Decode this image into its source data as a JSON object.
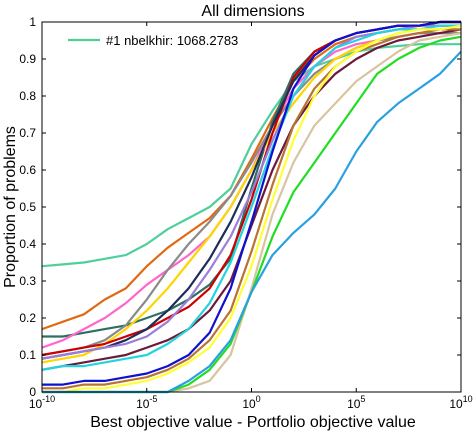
{
  "chart_data": {
    "type": "line",
    "title": "All dimensions",
    "xlabel": "Best objective value - Portfolio objective value",
    "ylabel": "Proportion of problems",
    "x_scale": "log10",
    "x_range": [
      "1e-10",
      "1e10"
    ],
    "ylim": [
      0,
      1
    ],
    "x_ticks": [
      {
        "base": "10",
        "exp": "-10"
      },
      {
        "base": "10",
        "exp": "-5"
      },
      {
        "base": "10",
        "exp": "0"
      },
      {
        "base": "10",
        "exp": "5"
      },
      {
        "base": "10",
        "exp": "10"
      }
    ],
    "y_ticks": [
      "0",
      "0.1",
      "0.2",
      "0.3",
      "0.4",
      "0.5",
      "0.6",
      "0.7",
      "0.8",
      "0.9",
      "1"
    ],
    "grid": false,
    "legend": {
      "position": "top-left",
      "entries": [
        "#1 nbelkhir: 1068.2783"
      ]
    },
    "series": [
      {
        "name": "#1 nbelkhir: 1068.2783",
        "color": "#4fcf9a",
        "x": [
          1e-10,
          1e-09,
          1e-08,
          1e-07,
          1e-06,
          1e-05,
          0.0001,
          0.001,
          0.01,
          0.1,
          1,
          10.0,
          100.0,
          1000.0,
          10000.0,
          100000.0,
          1000000.0,
          10000000.0,
          100000000.0,
          1000000000.0,
          10000000000.0
        ],
        "y": [
          0.34,
          0.345,
          0.35,
          0.36,
          0.37,
          0.4,
          0.44,
          0.47,
          0.5,
          0.55,
          0.67,
          0.76,
          0.84,
          0.88,
          0.9,
          0.92,
          0.93,
          0.935,
          0.94,
          0.94,
          0.94
        ]
      },
      {
        "color": "#e06a14",
        "x": [
          1e-10,
          1e-09,
          1e-08,
          1e-07,
          1e-06,
          1e-05,
          0.0001,
          0.001,
          0.01,
          0.1,
          1,
          10.0,
          100.0,
          1000.0,
          10000.0,
          100000.0,
          1000000.0,
          10000000.0,
          100000000.0,
          1000000000.0,
          10000000000.0
        ],
        "y": [
          0.17,
          0.19,
          0.21,
          0.25,
          0.28,
          0.34,
          0.39,
          0.43,
          0.47,
          0.53,
          0.63,
          0.74,
          0.84,
          0.9,
          0.94,
          0.96,
          0.97,
          0.98,
          0.99,
          0.99,
          0.99
        ]
      },
      {
        "color": "#2f6f62",
        "x": [
          1e-10,
          1e-09,
          1e-08,
          1e-07,
          1e-06,
          1e-05,
          0.0001,
          0.001,
          0.01,
          0.1,
          1,
          10.0,
          100.0,
          1000.0,
          10000.0,
          100000.0,
          1000000.0,
          10000000.0,
          100000000.0,
          1000000000.0,
          10000000000.0
        ],
        "y": [
          0.15,
          0.15,
          0.16,
          0.17,
          0.18,
          0.2,
          0.22,
          0.25,
          0.29,
          0.36,
          0.55,
          0.73,
          0.86,
          0.92,
          0.95,
          0.97,
          0.98,
          0.99,
          0.99,
          1,
          1
        ]
      },
      {
        "color": "#ff66cc",
        "x": [
          1e-10,
          1e-09,
          1e-08,
          1e-07,
          1e-06,
          1e-05,
          0.0001,
          0.001,
          0.01,
          0.1,
          1,
          10.0,
          100.0,
          1000.0,
          10000.0,
          100000.0,
          1000000.0,
          10000000.0,
          100000000.0,
          1000000000.0,
          10000000000.0
        ],
        "y": [
          0.12,
          0.14,
          0.17,
          0.2,
          0.24,
          0.29,
          0.33,
          0.37,
          0.42,
          0.5,
          0.6,
          0.72,
          0.82,
          0.88,
          0.92,
          0.94,
          0.95,
          0.96,
          0.97,
          0.97,
          0.97
        ]
      },
      {
        "color": "#8a8a8a",
        "x": [
          1e-10,
          1e-09,
          1e-08,
          1e-07,
          1e-06,
          1e-05,
          0.0001,
          0.001,
          0.01,
          0.1,
          1,
          10.0,
          100.0,
          1000.0,
          10000.0,
          100000.0,
          1000000.0,
          10000000.0,
          100000000.0,
          1000000000.0,
          10000000000.0
        ],
        "y": [
          0.1,
          0.11,
          0.12,
          0.14,
          0.18,
          0.25,
          0.33,
          0.4,
          0.46,
          0.53,
          0.62,
          0.72,
          0.8,
          0.86,
          0.9,
          0.93,
          0.95,
          0.96,
          0.97,
          0.97,
          0.97
        ]
      },
      {
        "color": "#ffd500",
        "x": [
          1e-10,
          1e-09,
          1e-08,
          1e-07,
          1e-06,
          1e-05,
          0.0001,
          0.001,
          0.01,
          0.1,
          1,
          10.0,
          100.0,
          1000.0,
          10000.0,
          100000.0,
          1000000.0,
          10000000.0,
          100000000.0,
          1000000000.0,
          10000000000.0
        ],
        "y": [
          0.08,
          0.09,
          0.1,
          0.13,
          0.17,
          0.22,
          0.28,
          0.35,
          0.42,
          0.5,
          0.6,
          0.7,
          0.78,
          0.85,
          0.9,
          0.93,
          0.95,
          0.97,
          0.98,
          0.98,
          0.99
        ]
      },
      {
        "color": "#cc0000",
        "x": [
          1e-10,
          1e-09,
          1e-08,
          1e-07,
          1e-06,
          1e-05,
          0.0001,
          0.001,
          0.01,
          0.1,
          1,
          10.0,
          100.0,
          1000.0,
          10000.0,
          100000.0,
          1000000.0,
          10000000.0,
          100000000.0,
          1000000000.0,
          10000000000.0
        ],
        "y": [
          0.1,
          0.11,
          0.12,
          0.13,
          0.15,
          0.17,
          0.2,
          0.23,
          0.28,
          0.37,
          0.52,
          0.7,
          0.85,
          0.92,
          0.95,
          0.97,
          0.98,
          0.99,
          0.99,
          1,
          1
        ]
      },
      {
        "color": "#1e2d5a",
        "x": [
          1e-10,
          1e-09,
          1e-08,
          1e-07,
          1e-06,
          1e-05,
          0.0001,
          0.001,
          0.01,
          0.1,
          1,
          10.0,
          100.0,
          1000.0,
          10000.0,
          100000.0,
          1000000.0,
          10000000.0,
          100000000.0,
          1000000000.0,
          10000000000.0
        ],
        "y": [
          0.09,
          0.1,
          0.11,
          0.12,
          0.14,
          0.17,
          0.22,
          0.28,
          0.36,
          0.46,
          0.58,
          0.72,
          0.84,
          0.91,
          0.95,
          0.97,
          0.98,
          0.99,
          0.99,
          1,
          1
        ]
      },
      {
        "color": "#9a7fd8",
        "x": [
          1e-10,
          1e-09,
          1e-08,
          1e-07,
          1e-06,
          1e-05,
          0.0001,
          0.001,
          0.01,
          0.1,
          1,
          10.0,
          100.0,
          1000.0,
          10000.0,
          100000.0,
          1000000.0,
          10000000.0,
          100000000.0,
          1000000000.0,
          10000000000.0
        ],
        "y": [
          0.09,
          0.1,
          0.11,
          0.12,
          0.13,
          0.15,
          0.19,
          0.25,
          0.33,
          0.42,
          0.54,
          0.68,
          0.8,
          0.88,
          0.93,
          0.96,
          0.97,
          0.98,
          0.99,
          0.99,
          0.99
        ]
      },
      {
        "color": "#6b1a3a",
        "x": [
          1e-10,
          1e-09,
          1e-08,
          1e-07,
          1e-06,
          1e-05,
          0.0001,
          0.001,
          0.01,
          0.1,
          1,
          10.0,
          100.0,
          1000.0,
          10000.0,
          100000.0,
          1000000.0,
          10000000.0,
          100000000.0,
          1000000000.0,
          10000000000.0
        ],
        "y": [
          0.06,
          0.07,
          0.08,
          0.09,
          0.1,
          0.12,
          0.14,
          0.17,
          0.22,
          0.3,
          0.45,
          0.6,
          0.72,
          0.8,
          0.86,
          0.9,
          0.93,
          0.95,
          0.96,
          0.97,
          0.98
        ]
      },
      {
        "color": "#22d4e0",
        "x": [
          1e-10,
          1e-09,
          1e-08,
          1e-07,
          1e-06,
          1e-05,
          0.0001,
          0.001,
          0.01,
          0.1,
          1,
          10.0,
          100.0,
          1000.0,
          10000.0,
          100000.0,
          1000000.0,
          10000000.0,
          100000000.0,
          1000000000.0,
          10000000000.0
        ],
        "y": [
          0.06,
          0.07,
          0.07,
          0.08,
          0.09,
          0.1,
          0.13,
          0.17,
          0.24,
          0.35,
          0.5,
          0.66,
          0.8,
          0.88,
          0.93,
          0.95,
          0.97,
          0.98,
          0.98,
          0.99,
          0.99
        ]
      },
      {
        "color": "#1010d0",
        "x": [
          1e-10,
          1e-09,
          1e-08,
          1e-07,
          1e-06,
          1e-05,
          0.0001,
          0.001,
          0.01,
          0.1,
          1,
          10.0,
          100.0,
          1000.0,
          10000.0,
          100000.0,
          1000000.0,
          10000000.0,
          100000000.0,
          1000000000.0,
          10000000000.0
        ],
        "y": [
          0.02,
          0.02,
          0.03,
          0.03,
          0.04,
          0.05,
          0.07,
          0.1,
          0.16,
          0.28,
          0.46,
          0.65,
          0.82,
          0.91,
          0.95,
          0.97,
          0.98,
          0.99,
          0.99,
          1,
          1
        ]
      },
      {
        "color": "#b87333",
        "x": [
          1e-10,
          1e-09,
          1e-08,
          1e-07,
          1e-06,
          1e-05,
          0.0001,
          0.001,
          0.01,
          0.1,
          1,
          10.0,
          100.0,
          1000.0,
          10000.0,
          100000.0,
          1000000.0,
          10000000.0,
          100000000.0,
          1000000000.0,
          10000000000.0
        ],
        "y": [
          0.01,
          0.01,
          0.02,
          0.02,
          0.03,
          0.04,
          0.06,
          0.09,
          0.14,
          0.22,
          0.38,
          0.56,
          0.72,
          0.82,
          0.88,
          0.92,
          0.94,
          0.96,
          0.97,
          0.98,
          0.98
        ]
      },
      {
        "color": "#ffff33",
        "x": [
          1e-10,
          1e-09,
          1e-08,
          1e-07,
          1e-06,
          1e-05,
          0.0001,
          0.001,
          0.01,
          0.1,
          1,
          10.0,
          100.0,
          1000.0,
          10000.0,
          100000.0,
          1000000.0,
          10000000.0,
          100000000.0,
          1000000000.0,
          10000000000.0
        ],
        "y": [
          0.0,
          0.0,
          0.01,
          0.01,
          0.02,
          0.03,
          0.05,
          0.08,
          0.12,
          0.2,
          0.34,
          0.52,
          0.68,
          0.8,
          0.88,
          0.92,
          0.95,
          0.97,
          0.98,
          0.98,
          0.99
        ]
      },
      {
        "color": "#d9c4a0",
        "x": [
          1e-10,
          1e-09,
          1e-08,
          1e-07,
          1e-06,
          1e-05,
          0.0001,
          0.001,
          0.01,
          0.1,
          1,
          10.0,
          100.0,
          1000.0,
          10000.0,
          100000.0,
          1000000.0,
          10000000.0,
          100000000.0,
          1000000000.0,
          10000000000.0
        ],
        "y": [
          0.0,
          0.0,
          0.0,
          0.0,
          0.0,
          0.0,
          0.0,
          0.01,
          0.03,
          0.1,
          0.28,
          0.48,
          0.62,
          0.72,
          0.78,
          0.84,
          0.88,
          0.92,
          0.95,
          0.96,
          0.97
        ]
      },
      {
        "color": "#22dd22",
        "x": [
          1e-10,
          1e-09,
          1e-08,
          1e-07,
          1e-06,
          1e-05,
          0.0001,
          0.001,
          0.01,
          0.1,
          1,
          10.0,
          100.0,
          1000.0,
          10000.0,
          100000.0,
          1000000.0,
          10000000.0,
          100000000.0,
          1000000000.0,
          10000000000.0
        ],
        "y": [
          0.0,
          0.0,
          0.0,
          0.0,
          0.0,
          0.0,
          0.0,
          0.02,
          0.06,
          0.13,
          0.27,
          0.42,
          0.54,
          0.62,
          0.7,
          0.78,
          0.86,
          0.9,
          0.93,
          0.95,
          0.96
        ]
      },
      {
        "color": "#2aa0e0",
        "x": [
          1e-10,
          1e-09,
          1e-08,
          1e-07,
          1e-06,
          1e-05,
          0.0001,
          0.001,
          0.01,
          0.1,
          1,
          10.0,
          100.0,
          1000.0,
          10000.0,
          100000.0,
          1000000.0,
          10000000.0,
          100000000.0,
          1000000000.0,
          10000000000.0
        ],
        "y": [
          0.0,
          0.0,
          0.0,
          0.0,
          0.0,
          0.0,
          0.0,
          0.03,
          0.07,
          0.14,
          0.27,
          0.37,
          0.43,
          0.48,
          0.55,
          0.65,
          0.73,
          0.78,
          0.82,
          0.86,
          0.92
        ]
      }
    ]
  }
}
